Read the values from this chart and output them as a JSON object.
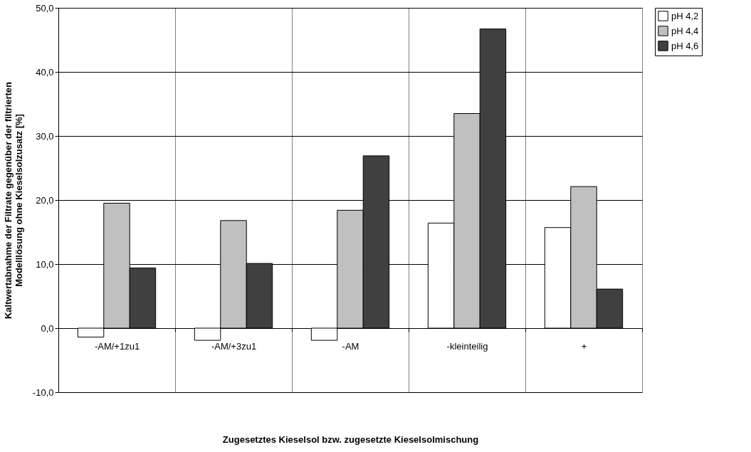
{
  "chart_data": {
    "type": "bar",
    "xlabel": "Zugesetztes Kieselsol bzw. zugesetzte Kieselsolmischung",
    "ylabel": "Kaltwertabnahme der Filtrate gegenüber der filtrierten\nModelllösung ohne Kieselsolzusatz [%]",
    "categories": [
      "-AM/+1zu1",
      "-AM/+3zu1",
      "-AM",
      "-kleinteilig",
      "+"
    ],
    "series": [
      {
        "name": "pH 4,2",
        "color": "#ffffff",
        "values": [
          -1.4,
          -1.9,
          -1.9,
          16.4,
          15.7
        ]
      },
      {
        "name": "pH 4,4",
        "color": "#c0c0c0",
        "values": [
          19.5,
          16.8,
          18.4,
          33.5,
          22.1
        ]
      },
      {
        "name": "pH 4,6",
        "color": "#404040",
        "values": [
          9.4,
          10.1,
          26.9,
          46.7,
          6.1
        ]
      }
    ],
    "ylim": [
      -10,
      50
    ],
    "yticks": [
      {
        "value": -10,
        "label": "-10,0"
      },
      {
        "value": 0,
        "label": "0,0"
      },
      {
        "value": 10,
        "label": "10,0"
      },
      {
        "value": 20,
        "label": "20,0"
      },
      {
        "value": 30,
        "label": "30,0"
      },
      {
        "value": 40,
        "label": "40,0"
      },
      {
        "value": 50,
        "label": "50,0"
      }
    ],
    "grid": true,
    "legend": "right"
  }
}
